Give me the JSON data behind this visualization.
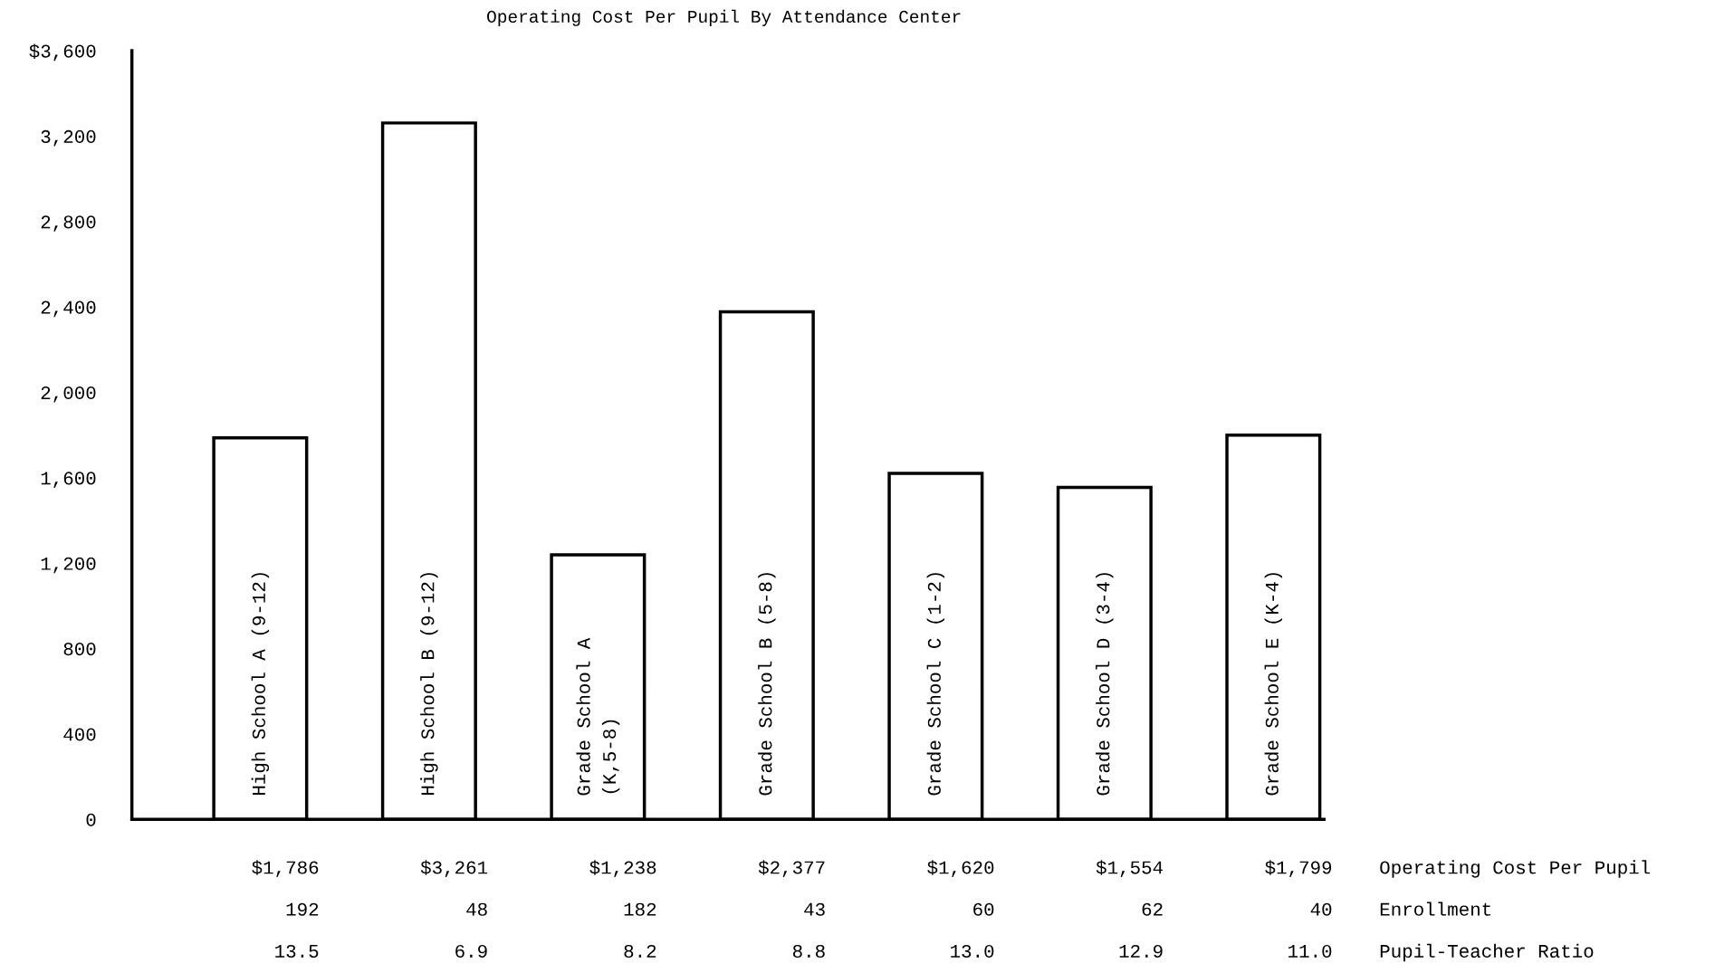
{
  "chart_data": {
    "type": "bar",
    "title": "Operating Cost Per Pupil By Attendance Center",
    "categories": [
      "High School A (9-12)",
      "High School B (9-12)",
      "Grade School A\n(K,5-8)",
      "Grade School B (5-8)",
      "Grade School C (1-2)",
      "Grade School D (3-4)",
      "Grade School E (K-4)"
    ],
    "series": [
      {
        "name": "Operating Cost Per Pupil",
        "color": "#ffffff",
        "values": [
          1786,
          3261,
          1238,
          2377,
          1620,
          1554,
          1799
        ],
        "value_labels": [
          "$1,786",
          "$3,261",
          "$1,238",
          "$2,377",
          "$1,620",
          "$1,554",
          "$1,799"
        ]
      }
    ],
    "ylim": [
      0,
      3600
    ],
    "yticks": [
      0,
      400,
      800,
      {
        "value": 1200,
        "label": "1,200"
      },
      {
        "value": 1600,
        "label": "1,600"
      },
      {
        "value": 2000,
        "label": "2,000"
      },
      {
        "value": 2400,
        "label": "2,400"
      },
      {
        "value": 2800,
        "label": "2,800"
      },
      {
        "value": 3200,
        "label": "3,200"
      },
      {
        "value": 3600,
        "label": "$3,600"
      }
    ],
    "grid": false,
    "legend": false,
    "annotations": [
      "Enrollment",
      "192",
      "48",
      "182",
      "43",
      "60",
      "62",
      "40",
      "Pupil-Teacher Ratio",
      "13.5",
      "6.9",
      "8.2",
      "8.8",
      "13.0",
      "12.9",
      "11.0"
    ]
  }
}
